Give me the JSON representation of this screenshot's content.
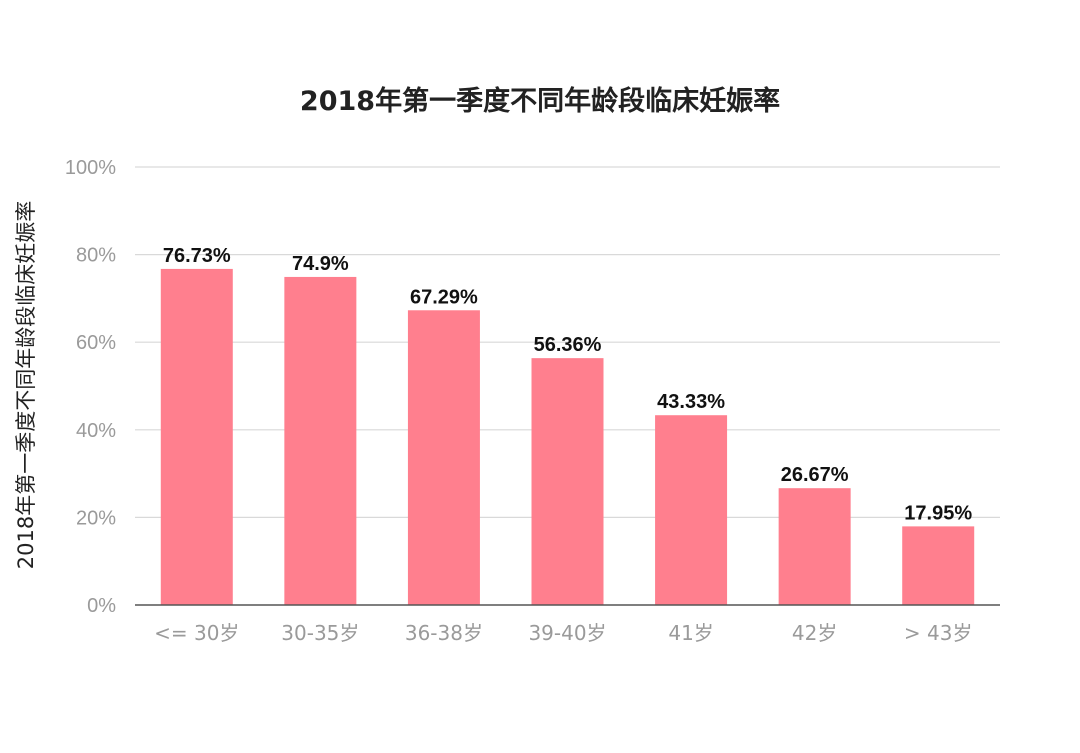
{
  "chart_data": {
    "type": "bar",
    "title": "2018年第一季度不同年龄段临床妊娠率",
    "xlabel": "",
    "ylabel": "2018年第一季度不同年龄段临床妊娠率",
    "categories": [
      "<= 30岁",
      "30-35岁",
      "36-38岁",
      "39-40岁",
      "41岁",
      "42岁",
      "> 43岁"
    ],
    "values": [
      76.73,
      74.9,
      67.29,
      56.36,
      43.33,
      26.67,
      17.95
    ],
    "data_labels": [
      "76.73%",
      "74.9%",
      "67.29%",
      "56.36%",
      "43.33%",
      "26.67%",
      "17.95%"
    ],
    "y_ticks": [
      0,
      20,
      40,
      60,
      80,
      100
    ],
    "y_tick_labels": [
      "0%",
      "20%",
      "40%",
      "60%",
      "80%",
      "100%"
    ],
    "ylim": [
      0,
      100
    ],
    "grid": true,
    "legend": "none",
    "bar_color": "#ff7f8e",
    "grid_color": "#d9d9d9",
    "axis_color": "#555555"
  }
}
